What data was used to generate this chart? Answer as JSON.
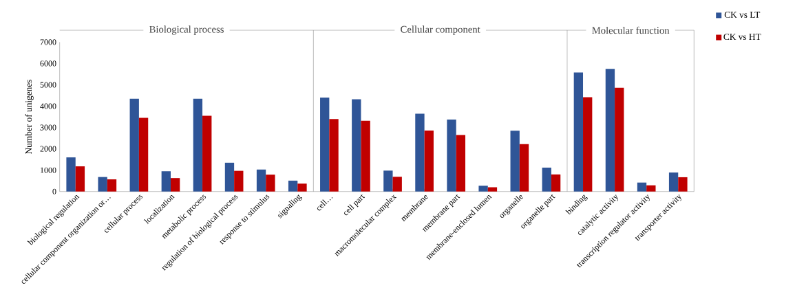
{
  "chart_data": {
    "type": "bar",
    "ylabel": "Number of unigenes",
    "categories": [
      "biological regulation",
      "cellular component organization or…",
      "cellular process",
      "localization",
      "metabolic process",
      "regulation of biological process",
      "response to stimulus",
      "signaling",
      "cell…",
      "cell part",
      "macromolecular complex",
      "membrane",
      "membrane part",
      "membrane-enclosed lumen",
      "organelle",
      "organelle part",
      "binding",
      "catalytic activity",
      "transcription regulator activity",
      "transporter activity"
    ],
    "series": [
      {
        "name": "CK vs LT",
        "color": "#2f5597",
        "values": [
          1600,
          680,
          4350,
          950,
          4350,
          1350,
          1030,
          510,
          4400,
          4320,
          980,
          3650,
          3370,
          270,
          2850,
          1120,
          5580,
          5750,
          420,
          890
        ]
      },
      {
        "name": "CK vs HT",
        "color": "#c00000",
        "values": [
          1180,
          570,
          3450,
          630,
          3550,
          970,
          790,
          370,
          3400,
          3320,
          690,
          2860,
          2650,
          200,
          2220,
          800,
          4420,
          4860,
          290,
          670
        ]
      }
    ],
    "annotations": [
      "Biological process",
      "Cellular component",
      "Molecular function"
    ],
    "ylim": [
      0,
      7000
    ],
    "yticks": [
      0,
      1000,
      2000,
      3000,
      4000,
      5000,
      6000,
      7000
    ],
    "legend": "top right"
  }
}
